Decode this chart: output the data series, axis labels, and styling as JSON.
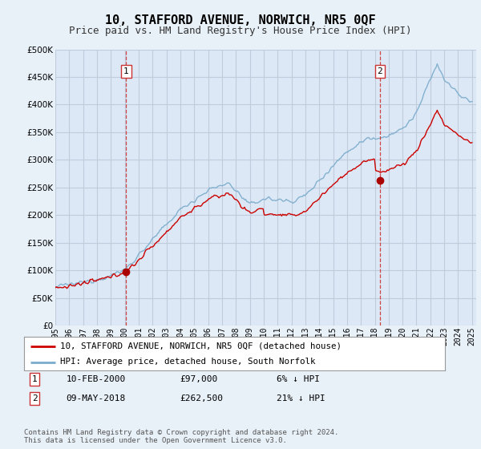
{
  "title": "10, STAFFORD AVENUE, NORWICH, NR5 0QF",
  "subtitle": "Price paid vs. HM Land Registry's House Price Index (HPI)",
  "title_fontsize": 11,
  "subtitle_fontsize": 9,
  "background_color": "#e8f0f8",
  "plot_bg_color": "#dce8f5",
  "grid_color": "#c0ccdd",
  "ylim": [
    0,
    500000
  ],
  "yticks": [
    0,
    50000,
    100000,
    150000,
    200000,
    250000,
    300000,
    350000,
    400000,
    450000,
    500000
  ],
  "transaction1": {
    "date": "10-FEB-2000",
    "price": 97000,
    "hpi_diff": "6% ↓ HPI",
    "x": 2000.1
  },
  "transaction2": {
    "date": "09-MAY-2018",
    "price": 262500,
    "hpi_diff": "21% ↓ HPI",
    "x": 2018.37
  },
  "legend_label_red": "10, STAFFORD AVENUE, NORWICH, NR5 0QF (detached house)",
  "legend_label_blue": "HPI: Average price, detached house, South Norfolk",
  "footer": "Contains HM Land Registry data © Crown copyright and database right 2024.\nThis data is licensed under the Open Government Licence v3.0.",
  "red_color": "#cc0000",
  "blue_color": "#7aabcc",
  "vline_color": "#cc3333",
  "marker_color": "#aa0000",
  "seed": 12345
}
